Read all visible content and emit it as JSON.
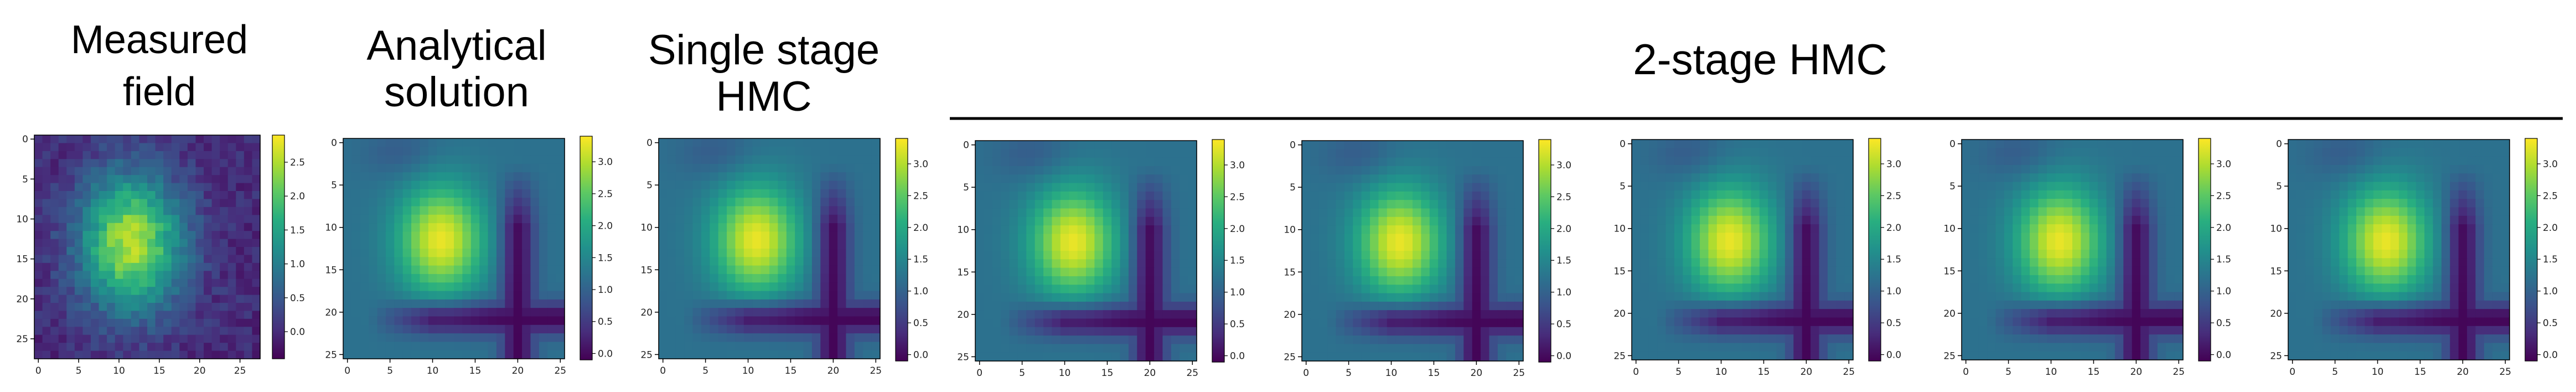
{
  "figure": {
    "titles": {
      "measured": [
        "Measured",
        "field"
      ],
      "analytical": [
        "Analytical",
        "solution"
      ],
      "single": [
        "Single stage",
        "HMC"
      ],
      "two_stage": "2-stage HMC"
    },
    "colormap": "viridis"
  },
  "chart_data": [
    {
      "type": "heatmap",
      "title": "Measured field",
      "grid_size": 28,
      "xticks": [
        0,
        5,
        10,
        15,
        20,
        25
      ],
      "yticks": [
        0,
        5,
        10,
        15,
        20,
        25
      ],
      "xlim": [
        0,
        27
      ],
      "ylim": [
        27,
        0
      ],
      "colorbar": {
        "min": -0.4,
        "max": 2.9,
        "ticks": [
          "0.0",
          "0.5",
          "1.0",
          "1.5",
          "2.0",
          "2.5"
        ]
      },
      "field": {
        "peak": 2.5,
        "peak_x": 11.5,
        "peak_y": 13,
        "sigma_x": 4.5,
        "sigma_y": 6,
        "background": 0.0,
        "noise": 0.45
      }
    },
    {
      "type": "heatmap",
      "title": "Analytical solution",
      "grid_size": 26,
      "xticks": [
        0,
        5,
        10,
        15,
        20,
        25
      ],
      "yticks": [
        0,
        5,
        10,
        15,
        20,
        25
      ],
      "xlim": [
        0,
        25
      ],
      "ylim": [
        25,
        0
      ],
      "colorbar": {
        "min": -0.1,
        "max": 3.4,
        "ticks": [
          "0.0",
          "0.5",
          "1.0",
          "1.5",
          "2.0",
          "2.5",
          "3.0"
        ]
      },
      "field": {
        "peak": 3.3,
        "peak_x": 11,
        "peak_y": 11.5,
        "sigma_x": 3.5,
        "sigma_y": 4.5,
        "background": 1.2,
        "trough": 0.0
      }
    },
    {
      "type": "heatmap",
      "title": "Single stage HMC",
      "grid_size": 26,
      "xticks": [
        0,
        5,
        10,
        15,
        20,
        25
      ],
      "yticks": [
        0,
        5,
        10,
        15,
        20,
        25
      ],
      "xlim": [
        0,
        25
      ],
      "ylim": [
        25,
        0
      ],
      "colorbar": {
        "min": -0.1,
        "max": 3.4,
        "ticks": [
          "0.0",
          "0.5",
          "1.0",
          "1.5",
          "2.0",
          "2.5",
          "3.0"
        ]
      },
      "field": {
        "peak": 3.3,
        "peak_x": 11,
        "peak_y": 11.5,
        "sigma_x": 3.5,
        "sigma_y": 4.5,
        "background": 1.2,
        "trough": 0.0
      }
    },
    {
      "type": "heatmap",
      "title": "2-stage HMC",
      "grid_size": 26,
      "xticks": [
        0,
        5,
        10,
        15,
        20,
        25
      ],
      "yticks": [
        0,
        5,
        10,
        15,
        20,
        25
      ],
      "xlim": [
        0,
        25
      ],
      "ylim": [
        25,
        0
      ],
      "colorbar": {
        "min": -0.1,
        "max": 3.4,
        "ticks": [
          "0.0",
          "0.5",
          "1.0",
          "1.5",
          "2.0",
          "2.5",
          "3.0"
        ]
      },
      "field": {
        "peak": 3.3,
        "peak_x": 11,
        "peak_y": 11.5,
        "sigma_x": 3.5,
        "sigma_y": 4.5,
        "background": 1.2,
        "trough": 0.0
      }
    },
    {
      "type": "heatmap",
      "title": "2-stage HMC",
      "grid_size": 26,
      "xticks": [
        0,
        5,
        10,
        15,
        20,
        25
      ],
      "yticks": [
        0,
        5,
        10,
        15,
        20,
        25
      ],
      "xlim": [
        0,
        25
      ],
      "ylim": [
        25,
        0
      ],
      "colorbar": {
        "min": -0.1,
        "max": 3.4,
        "ticks": [
          "0.0",
          "0.5",
          "1.0",
          "1.5",
          "2.0",
          "2.5",
          "3.0"
        ]
      },
      "field": {
        "peak": 3.3,
        "peak_x": 11,
        "peak_y": 11.5,
        "sigma_x": 3.5,
        "sigma_y": 4.5,
        "background": 1.2,
        "trough": 0.0
      }
    },
    {
      "type": "heatmap",
      "title": "2-stage HMC",
      "grid_size": 26,
      "xticks": [
        0,
        5,
        10,
        15,
        20,
        25
      ],
      "yticks": [
        0,
        5,
        10,
        15,
        20,
        25
      ],
      "xlim": [
        0,
        25
      ],
      "ylim": [
        25,
        0
      ],
      "colorbar": {
        "min": -0.1,
        "max": 3.4,
        "ticks": [
          "0.0",
          "0.5",
          "1.0",
          "1.5",
          "2.0",
          "2.5",
          "3.0"
        ]
      },
      "field": {
        "peak": 3.3,
        "peak_x": 11,
        "peak_y": 11.5,
        "sigma_x": 3.5,
        "sigma_y": 4.5,
        "background": 1.2,
        "trough": 0.0
      }
    },
    {
      "type": "heatmap",
      "title": "2-stage HMC",
      "grid_size": 26,
      "xticks": [
        0,
        5,
        10,
        15,
        20,
        25
      ],
      "yticks": [
        0,
        5,
        10,
        15,
        20,
        25
      ],
      "xlim": [
        0,
        25
      ],
      "ylim": [
        25,
        0
      ],
      "colorbar": {
        "min": -0.1,
        "max": 3.4,
        "ticks": [
          "0.0",
          "0.5",
          "1.0",
          "1.5",
          "2.0",
          "2.5",
          "3.0"
        ]
      },
      "field": {
        "peak": 3.3,
        "peak_x": 11,
        "peak_y": 11.5,
        "sigma_x": 3.5,
        "sigma_y": 4.5,
        "background": 1.2,
        "trough": 0.0
      }
    },
    {
      "type": "heatmap",
      "title": "2-stage HMC",
      "grid_size": 26,
      "xticks": [
        0,
        5,
        10,
        15,
        20,
        25
      ],
      "yticks": [
        0,
        5,
        10,
        15,
        20,
        25
      ],
      "xlim": [
        0,
        25
      ],
      "ylim": [
        25,
        0
      ],
      "colorbar": {
        "min": -0.1,
        "max": 3.4,
        "ticks": [
          "0.0",
          "0.5",
          "1.0",
          "1.5",
          "2.0",
          "2.5",
          "3.0"
        ]
      },
      "field": {
        "peak": 3.3,
        "peak_x": 11,
        "peak_y": 11.5,
        "sigma_x": 3.5,
        "sigma_y": 4.5,
        "background": 1.2,
        "trough": 0.0
      }
    }
  ]
}
